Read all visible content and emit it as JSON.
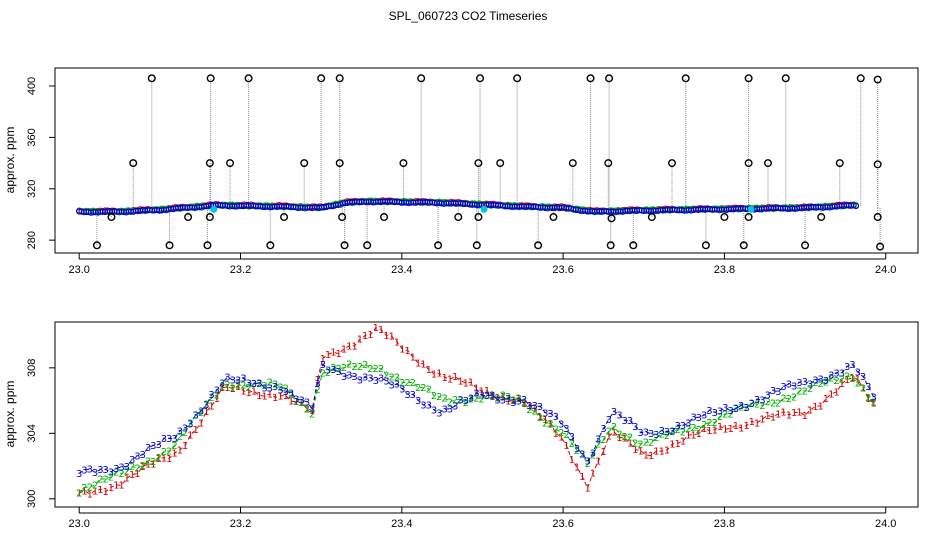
{
  "colors": {
    "series1": "#d00000",
    "series2": "#00b000",
    "series3": "#0000d0",
    "flag": "#000000",
    "cyan": "#00c8e0",
    "spike": "#8a8a8a"
  },
  "chart_data": [
    {
      "type": "scatter",
      "title": "SPL_060723  CO2 Timeseries",
      "xlabel": "",
      "ylabel": "approx. ppm",
      "xlim": [
        22.97,
        24.04
      ],
      "ylim": [
        270,
        414
      ],
      "xticks": [
        23.0,
        23.2,
        23.4,
        23.6,
        23.8,
        24.0
      ],
      "xtick_labels": [
        "23.0",
        "23.2",
        "23.4",
        "23.6",
        "23.8",
        "24.0"
      ],
      "yticks": [
        280,
        320,
        360,
        400
      ],
      "ytick_labels": [
        "280",
        "320",
        "360",
        "400"
      ],
      "baseline_knots": [
        [
          23.0,
          302
        ],
        [
          23.05,
          302
        ],
        [
          23.1,
          303.5
        ],
        [
          23.17,
          307
        ],
        [
          23.25,
          306
        ],
        [
          23.3,
          305
        ],
        [
          23.33,
          309
        ],
        [
          23.36,
          310
        ],
        [
          23.45,
          309
        ],
        [
          23.55,
          306
        ],
        [
          23.6,
          305
        ],
        [
          23.64,
          302
        ],
        [
          23.7,
          303
        ],
        [
          23.8,
          304
        ],
        [
          23.9,
          305
        ],
        [
          23.96,
          307
        ],
        [
          23.99,
          305
        ]
      ],
      "outliers_high": [
        {
          "x": 23.09,
          "y": 406
        },
        {
          "x": 23.163,
          "y": 406
        },
        {
          "x": 23.21,
          "y": 406
        },
        {
          "x": 23.3,
          "y": 406
        },
        {
          "x": 23.323,
          "y": 406
        },
        {
          "x": 23.424,
          "y": 406
        },
        {
          "x": 23.497,
          "y": 406
        },
        {
          "x": 23.543,
          "y": 406
        },
        {
          "x": 23.634,
          "y": 406
        },
        {
          "x": 23.657,
          "y": 406
        },
        {
          "x": 23.752,
          "y": 406
        },
        {
          "x": 23.83,
          "y": 406
        },
        {
          "x": 23.876,
          "y": 406
        },
        {
          "x": 23.969,
          "y": 406
        },
        {
          "x": 23.99,
          "y": 405
        }
      ],
      "outliers_mid": [
        {
          "x": 23.067,
          "y": 340
        },
        {
          "x": 23.162,
          "y": 340
        },
        {
          "x": 23.187,
          "y": 340
        },
        {
          "x": 23.279,
          "y": 340
        },
        {
          "x": 23.323,
          "y": 340
        },
        {
          "x": 23.402,
          "y": 340
        },
        {
          "x": 23.495,
          "y": 340
        },
        {
          "x": 23.522,
          "y": 340
        },
        {
          "x": 23.612,
          "y": 340
        },
        {
          "x": 23.656,
          "y": 340
        },
        {
          "x": 23.735,
          "y": 340
        },
        {
          "x": 23.83,
          "y": 340
        },
        {
          "x": 23.854,
          "y": 340
        },
        {
          "x": 23.943,
          "y": 340
        },
        {
          "x": 23.99,
          "y": 339
        }
      ],
      "outliers_low": [
        {
          "x": 23.022,
          "y": 276
        },
        {
          "x": 23.112,
          "y": 276
        },
        {
          "x": 23.159,
          "y": 276
        },
        {
          "x": 23.237,
          "y": 276
        },
        {
          "x": 23.329,
          "y": 276
        },
        {
          "x": 23.357,
          "y": 276
        },
        {
          "x": 23.445,
          "y": 276
        },
        {
          "x": 23.493,
          "y": 276
        },
        {
          "x": 23.569,
          "y": 276
        },
        {
          "x": 23.659,
          "y": 276
        },
        {
          "x": 23.687,
          "y": 276
        },
        {
          "x": 23.777,
          "y": 276
        },
        {
          "x": 23.824,
          "y": 276
        },
        {
          "x": 23.9,
          "y": 276
        },
        {
          "x": 23.993,
          "y": 275
        }
      ],
      "outliers_near": [
        {
          "x": 23.04,
          "y": 298
        },
        {
          "x": 23.135,
          "y": 298
        },
        {
          "x": 23.162,
          "y": 298
        },
        {
          "x": 23.254,
          "y": 298
        },
        {
          "x": 23.326,
          "y": 298
        },
        {
          "x": 23.378,
          "y": 298
        },
        {
          "x": 23.47,
          "y": 298
        },
        {
          "x": 23.495,
          "y": 298
        },
        {
          "x": 23.588,
          "y": 298
        },
        {
          "x": 23.66,
          "y": 297
        },
        {
          "x": 23.71,
          "y": 298
        },
        {
          "x": 23.8,
          "y": 298
        },
        {
          "x": 23.83,
          "y": 298
        },
        {
          "x": 23.92,
          "y": 298
        },
        {
          "x": 23.99,
          "y": 298
        }
      ],
      "cyan_points": [
        {
          "x": 23.167,
          "y": 304
        },
        {
          "x": 23.502,
          "y": 304
        },
        {
          "x": 23.833,
          "y": 304
        }
      ]
    },
    {
      "type": "scatter",
      "title": "",
      "xlabel": "",
      "ylabel": "approx. ppm",
      "xlim": [
        22.97,
        24.04
      ],
      "ylim": [
        299.5,
        310.8
      ],
      "xticks": [
        23.0,
        23.2,
        23.4,
        23.6,
        23.8,
        24.0
      ],
      "xtick_labels": [
        "23.0",
        "23.2",
        "23.4",
        "23.6",
        "23.8",
        "24.0"
      ],
      "yticks": [
        300,
        304,
        308
      ],
      "ytick_labels": [
        "300",
        "304",
        "308"
      ],
      "series": [
        {
          "name": "1",
          "offset": [
            23.0,
            300.2,
            23.05,
            301.0,
            23.12,
            302.8,
            23.18,
            306.7,
            23.25,
            306.4,
            23.29,
            305.2,
            23.3,
            308.6,
            23.37,
            310.3,
            23.45,
            307.5,
            23.5,
            306.6,
            23.55,
            306.0,
            23.6,
            303.6,
            23.63,
            300.9,
            23.66,
            304.0,
            23.7,
            302.7,
            23.75,
            303.6,
            23.8,
            304.4,
            23.9,
            305.3,
            23.96,
            307.4,
            23.985,
            305.7
          ]
        },
        {
          "name": "2",
          "offset": [
            23.0,
            300.6,
            23.05,
            301.4,
            23.12,
            303.3,
            23.18,
            307.1,
            23.25,
            306.8,
            23.29,
            305.4,
            23.3,
            307.8,
            23.37,
            308.1,
            23.45,
            306.0,
            23.5,
            306.3,
            23.55,
            305.9,
            23.6,
            304.1,
            23.63,
            302.0,
            23.66,
            304.5,
            23.7,
            303.3,
            23.75,
            304.2,
            23.8,
            305.1,
            23.9,
            306.6,
            23.96,
            307.6,
            23.985,
            306.0
          ]
        },
        {
          "name": "3",
          "offset": [
            23.0,
            301.5,
            23.05,
            302.0,
            23.12,
            303.8,
            23.18,
            307.2,
            23.25,
            306.9,
            23.29,
            305.4,
            23.3,
            308.0,
            23.37,
            307.3,
            23.45,
            305.4,
            23.5,
            306.3,
            23.55,
            306.1,
            23.6,
            304.5,
            23.63,
            302.4,
            23.66,
            305.3,
            23.7,
            303.9,
            23.75,
            304.6,
            23.8,
            305.4,
            23.9,
            307.1,
            23.96,
            308.1,
            23.985,
            306.2
          ]
        }
      ]
    }
  ]
}
